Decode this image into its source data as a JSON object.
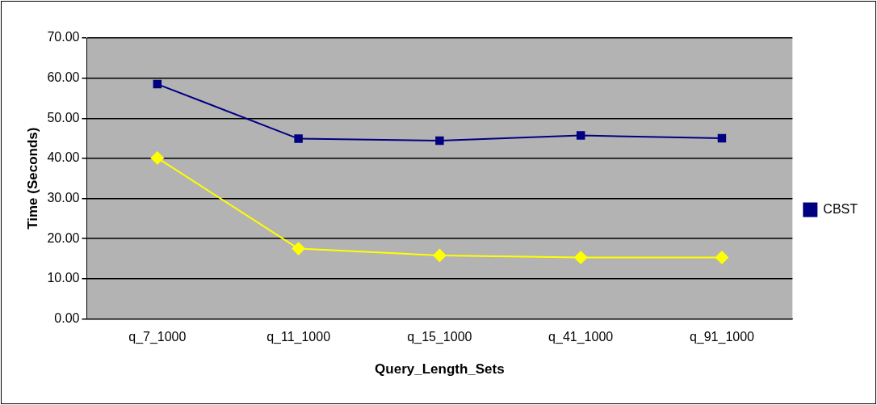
{
  "chart_data": {
    "type": "line",
    "xlabel": "Query_Length_Sets",
    "ylabel": "Time (Seconds)",
    "categories": [
      "q_7_1000",
      "q_11_1000",
      "q_15_1000",
      "q_41_1000",
      "q_91_1000"
    ],
    "series": [
      {
        "color": "#ffff00",
        "marker": "diamond",
        "values": [
          40.1,
          17.5,
          15.8,
          15.3,
          15.3
        ]
      },
      {
        "name": "CBST",
        "color": "#000080",
        "marker": "square",
        "values": [
          58.5,
          44.9,
          44.4,
          45.7,
          45.0
        ]
      }
    ],
    "ylim": [
      0,
      70
    ],
    "yticks": [
      {
        "value": 0,
        "label": "0.00"
      },
      {
        "value": 10,
        "label": "10.00"
      },
      {
        "value": 20,
        "label": "20.00"
      },
      {
        "value": 30,
        "label": "30.00"
      },
      {
        "value": 40,
        "label": "40.00"
      },
      {
        "value": 50,
        "label": "50.00"
      },
      {
        "value": 60,
        "label": "60.00"
      },
      {
        "value": 70,
        "label": "70.00"
      }
    ],
    "grid": "y",
    "legend": "right",
    "line_style": "solid"
  }
}
